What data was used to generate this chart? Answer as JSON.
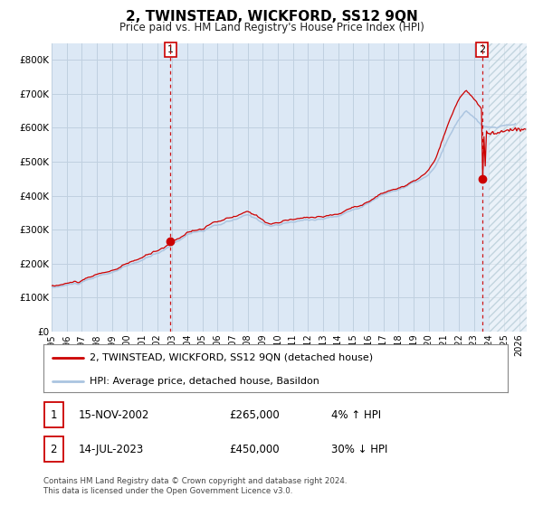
{
  "title": "2, TWINSTEAD, WICKFORD, SS12 9QN",
  "subtitle": "Price paid vs. HM Land Registry's House Price Index (HPI)",
  "title_fontsize": 11,
  "subtitle_fontsize": 8.5,
  "ylim": [
    0,
    850000
  ],
  "xlim_start": 1995.0,
  "xlim_end": 2026.5,
  "hpi_color": "#aac4e0",
  "price_color": "#cc0000",
  "grid_color": "#c0d0e0",
  "background_color": "#dce8f5",
  "sale1_date": 2002.878,
  "sale1_price": 265000,
  "sale2_date": 2023.536,
  "sale2_price": 450000,
  "legend_line1": "2, TWINSTEAD, WICKFORD, SS12 9QN (detached house)",
  "legend_line2": "HPI: Average price, detached house, Basildon",
  "table_row1": [
    "1",
    "15-NOV-2002",
    "£265,000",
    "4% ↑ HPI"
  ],
  "table_row2": [
    "2",
    "14-JUL-2023",
    "£450,000",
    "30% ↓ HPI"
  ],
  "footnote": "Contains HM Land Registry data © Crown copyright and database right 2024.\nThis data is licensed under the Open Government Licence v3.0.",
  "ytick_labels": [
    "£0",
    "£100K",
    "£200K",
    "£300K",
    "£400K",
    "£500K",
    "£600K",
    "£700K",
    "£800K"
  ],
  "ytick_values": [
    0,
    100000,
    200000,
    300000,
    400000,
    500000,
    600000,
    700000,
    800000
  ],
  "xtick_years": [
    1995,
    1996,
    1997,
    1998,
    1999,
    2000,
    2001,
    2002,
    2003,
    2004,
    2005,
    2006,
    2007,
    2008,
    2009,
    2010,
    2011,
    2012,
    2013,
    2014,
    2015,
    2016,
    2017,
    2018,
    2019,
    2020,
    2021,
    2022,
    2023,
    2024,
    2025,
    2026
  ]
}
